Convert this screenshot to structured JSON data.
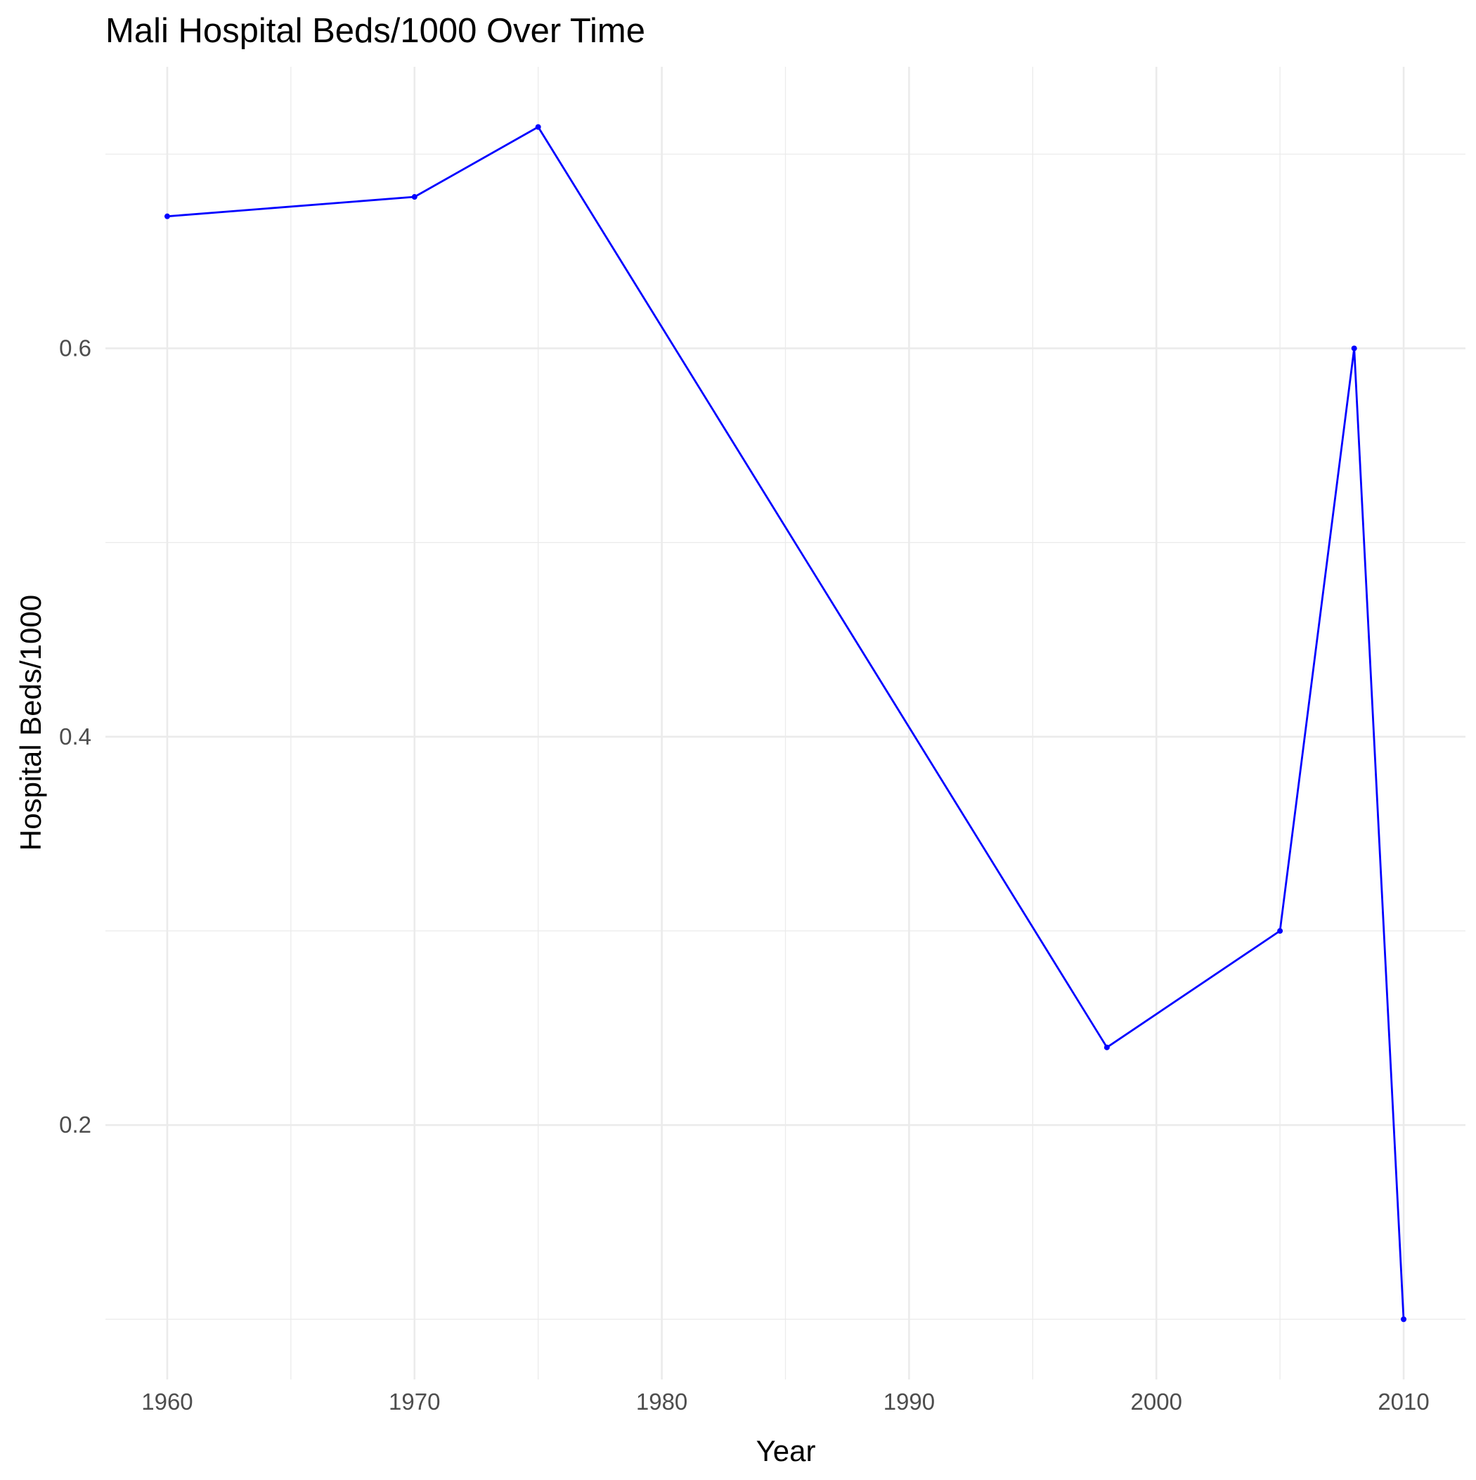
{
  "chart_data": {
    "type": "line",
    "title": "Mali Hospital Beds/1000 Over Time",
    "xlabel": "Year",
    "ylabel": "Hospital Beds/1000",
    "x": [
      1960,
      1970,
      1975,
      1998,
      2005,
      2008,
      2010
    ],
    "series": [
      {
        "values": [
          0.668,
          0.678,
          0.714,
          0.24,
          0.3,
          0.6,
          0.1
        ],
        "color": "#0000ff"
      }
    ],
    "xlim": [
      1957.5,
      2012.5
    ],
    "ylim": [
      0.069,
      0.745
    ],
    "x_ticks": [
      "1960",
      "1970",
      "1980",
      "1990",
      "2000",
      "2010"
    ],
    "y_ticks": [
      "0.2",
      "0.4",
      "0.6"
    ],
    "grid": true,
    "legend": "none"
  }
}
